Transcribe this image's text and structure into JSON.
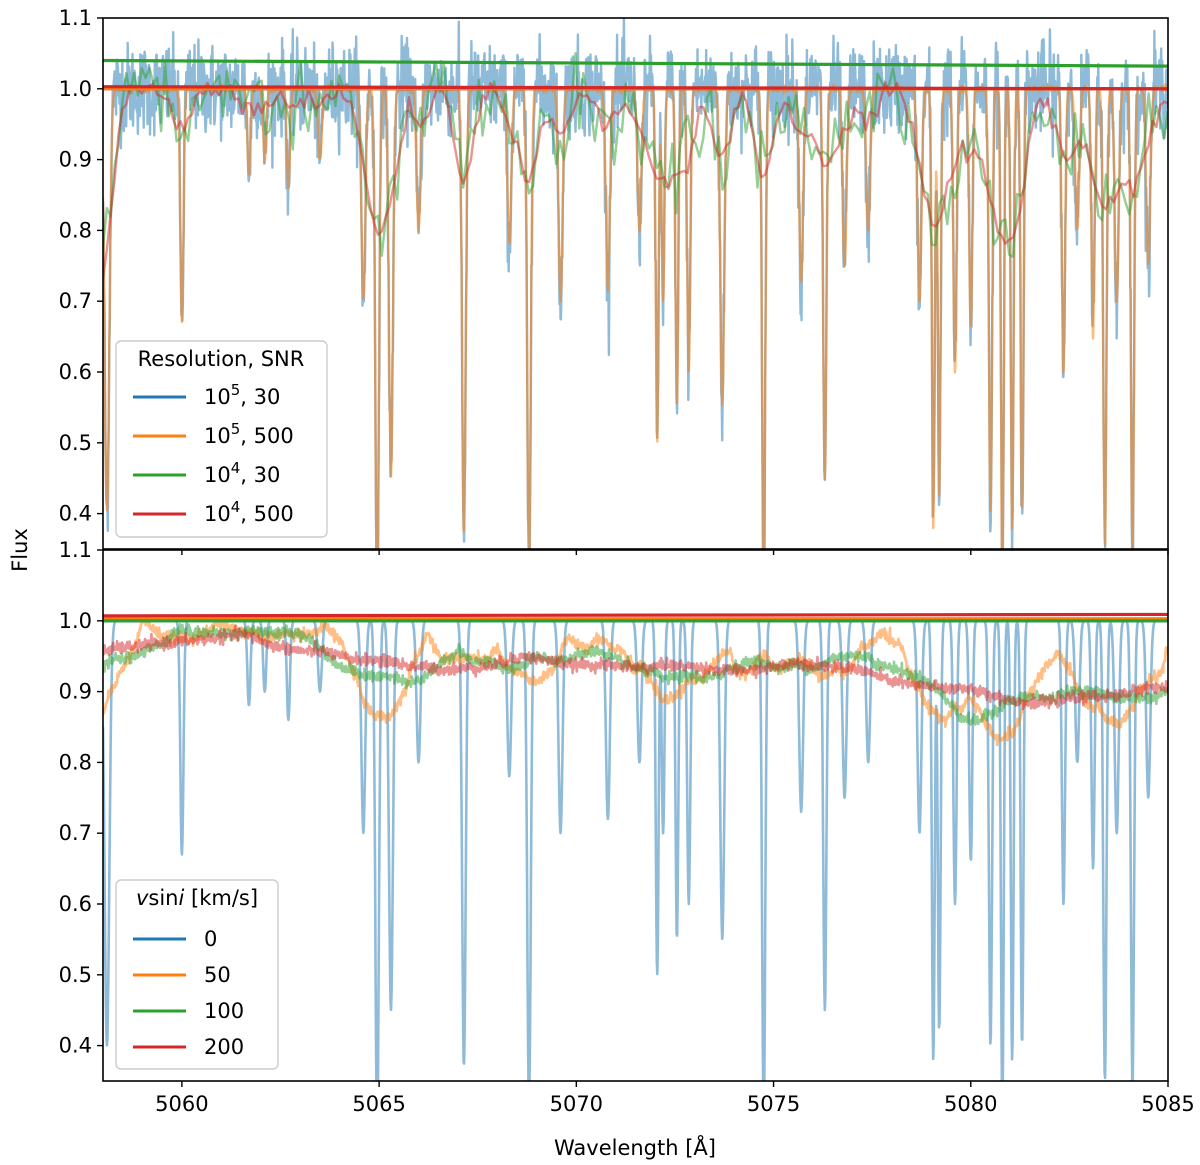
{
  "chart_data": {
    "type": "line",
    "xlabel": "Wavelength [Å]",
    "ylabel": "Flux",
    "xlim": [
      5058,
      5085
    ],
    "x_ticks": [
      "5060",
      "5065",
      "5070",
      "5075",
      "5080",
      "5085"
    ],
    "y_ticks": [
      "0.4",
      "0.5",
      "0.6",
      "0.7",
      "0.8",
      "0.9",
      "1.0",
      "1.1"
    ],
    "shared_x": true,
    "panels": [
      {
        "ylim": [
          0.35,
          1.1
        ],
        "legend": {
          "title": "Resolution, SNR",
          "location": "lower-left",
          "entries": [
            {
              "base": "10",
              "sup": "5",
              "rest": ", 30"
            },
            {
              "base": "10",
              "sup": "5",
              "rest": ", 500"
            },
            {
              "base": "10",
              "sup": "4",
              "rest": ", 30"
            },
            {
              "base": "10",
              "sup": "4",
              "rest": ", 500"
            }
          ]
        },
        "series": [
          {
            "name": "10^5, 30",
            "color": "#1f77b4",
            "opacity": 0.5,
            "resolution": 100000,
            "snr": 30
          },
          {
            "name": "10^5, 500",
            "color": "#ff7f0e",
            "opacity": 0.5,
            "resolution": 100000,
            "snr": 500
          },
          {
            "name": "10^4, 30",
            "color": "#2ca02c",
            "opacity": 0.5,
            "resolution": 10000,
            "snr": 30
          },
          {
            "name": "10^4, 500",
            "color": "#d62728",
            "opacity": 0.5,
            "resolution": 10000,
            "snr": 500
          }
        ],
        "continuum": [
          {
            "name": "10^5, 30",
            "color": "#1f77b4",
            "x": [
              5058,
              5085
            ],
            "y": [
              1.0,
              1.0
            ]
          },
          {
            "name": "10^5, 500",
            "color": "#ff7f0e",
            "x": [
              5058,
              5085
            ],
            "y": [
              1.0,
              1.0
            ]
          },
          {
            "name": "10^4, 30",
            "color": "#2ca02c",
            "x": [
              5058,
              5085
            ],
            "y": [
              1.04,
              1.032
            ]
          },
          {
            "name": "10^4, 500",
            "color": "#d62728",
            "x": [
              5058,
              5085
            ],
            "y": [
              1.003,
              1.0
            ]
          }
        ]
      },
      {
        "ylim": [
          0.35,
          1.1
        ],
        "legend": {
          "title_parts": [
            {
              "text": "v",
              "italic": true
            },
            {
              "text": "sin",
              "italic": false
            },
            {
              "text": "i",
              "italic": true
            },
            {
              "text": " [km/s]",
              "italic": false
            }
          ],
          "location": "lower-left",
          "entries": [
            "0",
            "50",
            "100",
            "200"
          ]
        },
        "series": [
          {
            "name": "0",
            "color": "#1f77b4",
            "opacity": 0.5,
            "vsini": 0
          },
          {
            "name": "50",
            "color": "#ff7f0e",
            "opacity": 0.5,
            "vsini": 50
          },
          {
            "name": "100",
            "color": "#2ca02c",
            "opacity": 0.5,
            "vsini": 100
          },
          {
            "name": "200",
            "color": "#d62728",
            "opacity": 0.5,
            "vsini": 200
          }
        ],
        "continuum": [
          {
            "name": "0",
            "color": "#1f77b4",
            "x": [
              5058,
              5085
            ],
            "y": [
              1.0,
              1.0
            ]
          },
          {
            "name": "50",
            "color": "#ff7f0e",
            "x": [
              5058,
              5085
            ],
            "y": [
              1.003,
              1.003
            ]
          },
          {
            "name": "100",
            "color": "#2ca02c",
            "x": [
              5058,
              5085
            ],
            "y": [
              1.0,
              1.0
            ]
          },
          {
            "name": "200",
            "color": "#d62728",
            "x": [
              5058,
              5085
            ],
            "y": [
              1.007,
              1.009
            ]
          }
        ]
      }
    ],
    "absorption_lines": {
      "x": [
        5058.1,
        5060.0,
        5061.7,
        5062.1,
        5062.7,
        5063.5,
        5064.6,
        5064.95,
        5065.3,
        5066.0,
        5067.15,
        5068.3,
        5068.8,
        5069.6,
        5070.8,
        5071.6,
        5072.05,
        5072.2,
        5072.55,
        5072.85,
        5073.7,
        5074.75,
        5075.7,
        5076.3,
        5076.8,
        5077.4,
        5078.7,
        5079.05,
        5079.2,
        5079.6,
        5080.0,
        5080.5,
        5080.8,
        5081.05,
        5081.3,
        5082.35,
        5082.7,
        5083.1,
        5083.4,
        5083.7,
        5084.1,
        5084.5
      ],
      "depth": [
        0.6,
        0.33,
        0.12,
        0.1,
        0.14,
        0.1,
        0.3,
        0.72,
        0.55,
        0.2,
        0.63,
        0.22,
        0.68,
        0.3,
        0.28,
        0.2,
        0.5,
        0.3,
        0.45,
        0.4,
        0.45,
        0.7,
        0.27,
        0.55,
        0.25,
        0.2,
        0.3,
        0.62,
        0.58,
        0.4,
        0.34,
        0.6,
        0.7,
        0.62,
        0.6,
        0.4,
        0.2,
        0.35,
        0.65,
        0.3,
        0.66,
        0.25
      ],
      "width": [
        0.06,
        0.04,
        0.04,
        0.04,
        0.04,
        0.05,
        0.05,
        0.045,
        0.05,
        0.05,
        0.045,
        0.05,
        0.045,
        0.05,
        0.05,
        0.05,
        0.035,
        0.035,
        0.035,
        0.04,
        0.05,
        0.04,
        0.05,
        0.04,
        0.05,
        0.05,
        0.05,
        0.035,
        0.035,
        0.04,
        0.04,
        0.04,
        0.035,
        0.035,
        0.035,
        0.04,
        0.05,
        0.04,
        0.04,
        0.05,
        0.04,
        0.05
      ]
    }
  }
}
